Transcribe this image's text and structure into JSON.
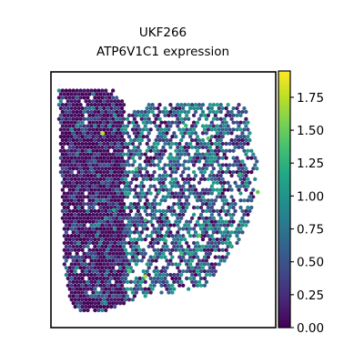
{
  "chart_data": {
    "type": "scatter",
    "title": "UKF266",
    "subtitle": "ATP6V1C1 expression",
    "xlabel": "",
    "ylabel": "",
    "grid": false,
    "legend": "colorbar-right",
    "colormap": "viridis",
    "colorbar": {
      "range": [
        0.0,
        1.95
      ],
      "ticks": [
        "0.00",
        "0.25",
        "0.50",
        "0.75",
        "1.00",
        "1.25",
        "1.50",
        "1.75"
      ]
    },
    "x_range": [
      0,
      100
    ],
    "y_range": [
      0,
      100
    ],
    "tissue_outline": [
      [
        3,
        94
      ],
      [
        28,
        93
      ],
      [
        36,
        84
      ],
      [
        45,
        88
      ],
      [
        86,
        88
      ],
      [
        89,
        78
      ],
      [
        92,
        65
      ],
      [
        90,
        50
      ],
      [
        87,
        38
      ],
      [
        81,
        30
      ],
      [
        74,
        22
      ],
      [
        68,
        16
      ],
      [
        57,
        14
      ],
      [
        40,
        12
      ],
      [
        26,
        7
      ],
      [
        15,
        5
      ],
      [
        9,
        9
      ],
      [
        6,
        24
      ],
      [
        5,
        45
      ],
      [
        4,
        70
      ]
    ],
    "low_region_x": [
      3,
      33
    ],
    "highlight_points": [
      {
        "x": 23,
        "y": 76,
        "value": 1.75
      },
      {
        "x": 38,
        "y": 62,
        "value": 1.35
      },
      {
        "x": 28,
        "y": 46,
        "value": 1.2
      },
      {
        "x": 42,
        "y": 42,
        "value": 1.3
      },
      {
        "x": 51,
        "y": 34,
        "value": 1.25
      },
      {
        "x": 58,
        "y": 29,
        "value": 1.35
      },
      {
        "x": 35,
        "y": 22,
        "value": 1.4
      },
      {
        "x": 42,
        "y": 20,
        "value": 1.7
      },
      {
        "x": 66,
        "y": 36,
        "value": 1.45
      },
      {
        "x": 80,
        "y": 32,
        "value": 1.25
      },
      {
        "x": 92,
        "y": 53,
        "value": 1.5
      },
      {
        "x": 60,
        "y": 79,
        "value": 1.3
      },
      {
        "x": 70,
        "y": 74,
        "value": 1.45
      },
      {
        "x": 84,
        "y": 60,
        "value": 1.3
      },
      {
        "x": 48,
        "y": 53,
        "value": 1.2
      }
    ],
    "colors": {
      "viridis": [
        "#440154",
        "#482475",
        "#414487",
        "#355f8d",
        "#2a788e",
        "#21918c",
        "#22a884",
        "#44bf70",
        "#7ad151",
        "#bddf26",
        "#fde725"
      ]
    }
  }
}
